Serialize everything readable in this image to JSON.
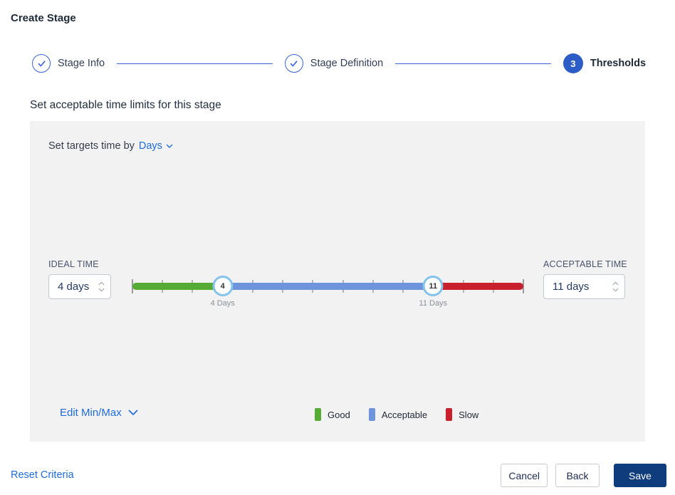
{
  "page": {
    "title": "Create Stage"
  },
  "stepper": {
    "steps": [
      {
        "label": "Stage Info",
        "state": "complete"
      },
      {
        "label": "Stage Definition",
        "state": "complete"
      },
      {
        "label": "Thresholds",
        "state": "current",
        "number": "3"
      }
    ]
  },
  "section": {
    "heading": "Set acceptable time limits for this stage"
  },
  "panel": {
    "target_time_label": "Set targets time by",
    "target_time_unit": "Days",
    "ideal": {
      "label": "IDEAL TIME",
      "value": "4 days"
    },
    "acceptable": {
      "label": "ACCEPTABLE TIME",
      "value": "11 days"
    },
    "slider": {
      "min_day": 1,
      "max_day": 14,
      "ideal_day": 4,
      "acceptable_day": 11,
      "ideal_handle": "4",
      "acceptable_handle": "11",
      "ideal_tooltip": "4 Days",
      "acceptable_tooltip": "11 Days",
      "colors": {
        "good": "#56ab35",
        "acceptable": "#6c95dd",
        "slow": "#c8202c",
        "handle_border": "#85c3ec"
      }
    },
    "edit_minmax_label": "Edit Min/Max",
    "legend": [
      {
        "label": "Good",
        "color": "#56ab35"
      },
      {
        "label": "Acceptable",
        "color": "#6c95dd"
      },
      {
        "label": "Slow",
        "color": "#c8202c"
      }
    ]
  },
  "footer": {
    "reset_label": "Reset Criteria",
    "cancel_label": "Cancel",
    "back_label": "Back",
    "save_label": "Save"
  },
  "colors": {
    "accent_blue": "#2c5cc5",
    "link_blue": "#1f6bdb",
    "save_navy": "#0e3c7d",
    "panel_bg": "#f2f2f2"
  },
  "icons": {
    "step_complete": "check-icon",
    "unit_dropdown": "chevron-down-icon",
    "edit_minmax": "chevron-down-icon",
    "input_stepper": "chevron-up-icon / chevron-down-icon"
  }
}
